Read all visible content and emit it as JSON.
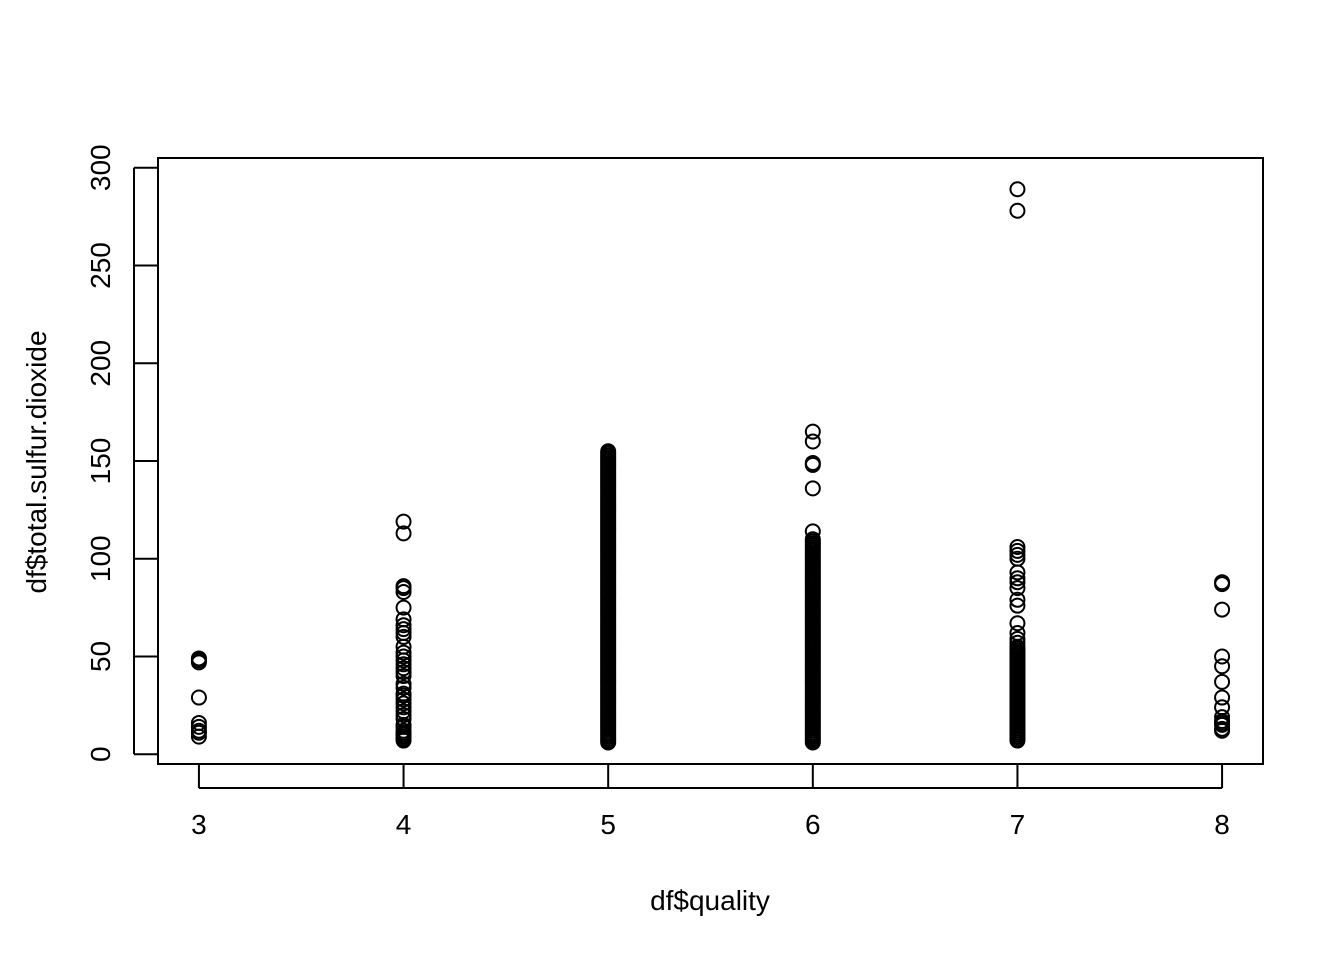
{
  "chart_data": {
    "type": "scatter",
    "title": "",
    "xlabel": "df$quality",
    "ylabel": "df$total.sulfur.dioxide",
    "xlim": [
      2.8,
      8.2
    ],
    "ylim": [
      -5,
      305
    ],
    "x_ticks": [
      3,
      4,
      5,
      6,
      7,
      8
    ],
    "y_ticks": [
      0,
      50,
      100,
      150,
      200,
      250,
      300
    ],
    "marker": "open-circle",
    "grid": false,
    "legend": "none",
    "colors": {
      "point": "#000000",
      "axis": "#000000",
      "background": "#ffffff"
    },
    "series": [
      {
        "x": 3,
        "values": [
          9,
          11,
          12,
          14,
          16,
          29,
          47,
          48,
          49
        ]
      },
      {
        "x": 4,
        "values": [
          7,
          8,
          9,
          10,
          11,
          12,
          14,
          15,
          18,
          20,
          22,
          24,
          26,
          28,
          30,
          31,
          34,
          36,
          40,
          42,
          44,
          46,
          48,
          50,
          52,
          55,
          60,
          62,
          64,
          66,
          69,
          75,
          83,
          85,
          86,
          113,
          119
        ]
      },
      {
        "x": 5,
        "values": "dense-5"
      },
      {
        "x": 6,
        "values": "dense-6"
      },
      {
        "x": 7,
        "values": [
          7,
          8,
          9,
          10,
          11,
          12,
          13,
          14,
          15,
          16,
          17,
          18,
          19,
          20,
          21,
          22,
          23,
          24,
          25,
          26,
          27,
          28,
          29,
          30,
          31,
          32,
          33,
          34,
          35,
          36,
          37,
          38,
          39,
          40,
          41,
          42,
          43,
          44,
          45,
          46,
          47,
          48,
          49,
          50,
          51,
          52,
          53,
          54,
          55,
          57,
          59,
          62,
          67,
          76,
          79,
          85,
          88,
          90,
          93,
          100,
          102,
          104,
          106,
          278,
          289
        ]
      },
      {
        "x": 8,
        "values": [
          12,
          13,
          15,
          16,
          17,
          19,
          24,
          29,
          37,
          45,
          50,
          74,
          87,
          88
        ]
      }
    ],
    "dense": {
      "dense-5": {
        "min": 6,
        "max": 155,
        "step": 1,
        "extra": []
      },
      "dense-6": {
        "min": 6,
        "max": 110,
        "step": 1,
        "extra": [
          114,
          136,
          148,
          149,
          160,
          165
        ]
      }
    }
  }
}
